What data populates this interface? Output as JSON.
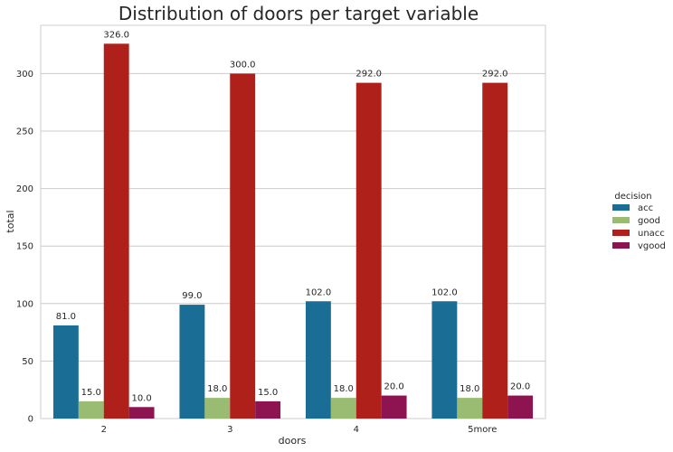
{
  "chart_data": {
    "type": "bar",
    "title": "Distribution of doors per target variable",
    "xlabel": "doors",
    "ylabel": "total",
    "categories": [
      "2",
      "3",
      "4",
      "5more"
    ],
    "ylim": [
      0,
      342
    ],
    "yticks": [
      0,
      50,
      100,
      150,
      200,
      250,
      300
    ],
    "grid": true,
    "legend": {
      "title": "decision",
      "placement": "right"
    },
    "series": [
      {
        "name": "acc",
        "color": "#1a6d94",
        "values": [
          81,
          99,
          102,
          102
        ]
      },
      {
        "name": "good",
        "color": "#9abc72",
        "values": [
          15,
          18,
          18,
          18
        ]
      },
      {
        "name": "unacc",
        "color": "#b0201b",
        "values": [
          326,
          300,
          292,
          292
        ]
      },
      {
        "name": "vgood",
        "color": "#8e1451",
        "values": [
          10,
          15,
          20,
          20
        ]
      }
    ]
  }
}
